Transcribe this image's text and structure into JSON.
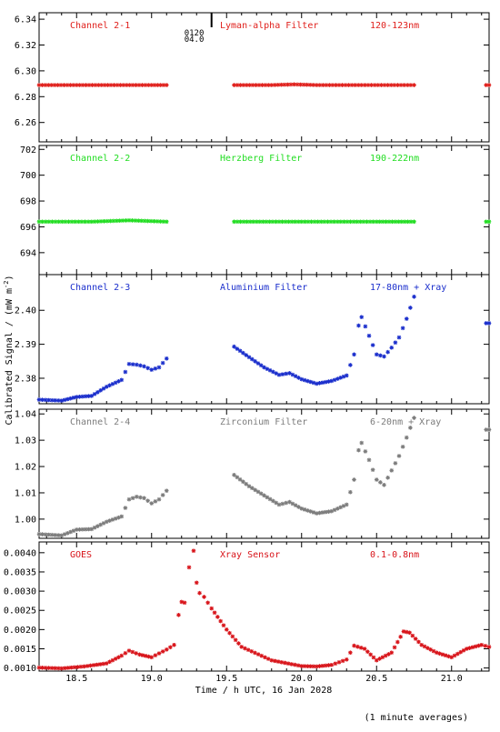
{
  "chart_data": [
    {
      "type": "scatter",
      "panel": 1,
      "labels": {
        "channel": "Channel 2-1",
        "filter": "Lyman-alpha Filter",
        "band": "120-123nm"
      },
      "color": "#e0201c",
      "ylim": [
        6.245,
        6.345
      ],
      "yticks": [
        6.26,
        6.28,
        6.3,
        6.32,
        6.34
      ],
      "yticklabels": [
        "6.26",
        "6.28",
        "6.30",
        "6.32",
        "6.34"
      ],
      "annotation": {
        "lines": [
          "0120",
          "04.0"
        ],
        "x": 19.23
      },
      "segments": [
        {
          "x": [
            18.25,
            18.5,
            18.75,
            19.0,
            19.1
          ],
          "y": [
            6.289,
            6.289,
            6.289,
            6.289,
            6.289
          ]
        },
        {
          "x": [
            19.55,
            19.8,
            19.95,
            20.1,
            20.4,
            20.75
          ],
          "y": [
            6.289,
            6.289,
            6.2895,
            6.289,
            6.289,
            6.289
          ]
        },
        {
          "x": [
            21.23,
            21.25
          ],
          "y": [
            6.289,
            6.289
          ]
        }
      ]
    },
    {
      "type": "scatter",
      "panel": 2,
      "labels": {
        "channel": "Channel 2-2",
        "filter": "Herzberg Filter",
        "band": "190-222nm"
      },
      "color": "#22dd22",
      "ylim": [
        692.3,
        702.3
      ],
      "yticks": [
        694,
        696,
        698,
        700,
        702
      ],
      "yticklabels": [
        "694",
        "696",
        "698",
        "700",
        "702"
      ],
      "segments": [
        {
          "x": [
            18.25,
            18.6,
            18.85,
            19.1
          ],
          "y": [
            696.4,
            696.4,
            696.5,
            696.4
          ]
        },
        {
          "x": [
            19.55,
            20.0,
            20.5,
            20.75
          ],
          "y": [
            696.4,
            696.4,
            696.4,
            696.4
          ]
        },
        {
          "x": [
            21.23,
            21.25
          ],
          "y": [
            696.4,
            696.4
          ]
        }
      ]
    },
    {
      "type": "scatter",
      "panel": 3,
      "labels": {
        "channel": "Channel 2-3",
        "filter": "Aluminium Filter",
        "band": "17-80nm + Xray"
      },
      "color": "#1a2ecc",
      "ylim": [
        2.3725,
        2.4105
      ],
      "yticks": [
        2.38,
        2.39,
        2.4
      ],
      "yticklabels": [
        "2.38",
        "2.39",
        "2.40"
      ],
      "segments": [
        {
          "x": [
            18.25,
            18.4,
            18.5,
            18.6,
            18.7,
            18.8,
            18.85,
            18.9,
            18.95,
            19.0,
            19.05,
            19.1
          ],
          "y": [
            2.3737,
            2.3734,
            2.3745,
            2.3748,
            2.3775,
            2.3795,
            2.3842,
            2.384,
            2.3835,
            2.3825,
            2.3832,
            2.3858
          ]
        },
        {
          "x": [
            19.55,
            19.65,
            19.75,
            19.85,
            19.92,
            20.0,
            20.1,
            20.2,
            20.3,
            20.35,
            20.38,
            20.4,
            20.45,
            20.5,
            20.55,
            20.6,
            20.65,
            20.7,
            20.75
          ],
          "y": [
            2.3893,
            2.3862,
            2.3832,
            2.381,
            2.3815,
            2.3797,
            2.3784,
            2.3792,
            2.3808,
            2.387,
            2.3955,
            2.398,
            2.3925,
            2.387,
            2.3864,
            2.389,
            2.392,
            2.3975,
            2.404
          ]
        },
        {
          "x": [
            21.23,
            21.25
          ],
          "y": [
            2.3962,
            2.3962
          ]
        }
      ]
    },
    {
      "type": "scatter",
      "panel": 4,
      "labels": {
        "channel": "Channel 2-4",
        "filter": "Zirconium Filter",
        "band": "6-20nm + Xray"
      },
      "color": "#7c7c7c",
      "ylim": [
        0.9927,
        1.0418
      ],
      "yticks": [
        1.0,
        1.01,
        1.02,
        1.03,
        1.04
      ],
      "yticklabels": [
        "1.00",
        "1.01",
        "1.02",
        "1.03",
        "1.04"
      ],
      "segments": [
        {
          "x": [
            18.25,
            18.4,
            18.5,
            18.6,
            18.7,
            18.8,
            18.85,
            18.9,
            18.95,
            19.0,
            19.05,
            19.1
          ],
          "y": [
            0.9943,
            0.9938,
            0.996,
            0.9962,
            0.999,
            1.001,
            1.0075,
            1.0085,
            1.008,
            1.006,
            1.0075,
            1.0108
          ]
        },
        {
          "x": [
            19.55,
            19.65,
            19.75,
            19.85,
            19.92,
            20.0,
            20.1,
            20.2,
            20.3,
            20.35,
            20.38,
            20.4,
            20.45,
            20.5,
            20.55,
            20.6,
            20.65,
            20.7,
            20.75
          ],
          "y": [
            1.0168,
            1.0125,
            1.009,
            1.0055,
            1.0065,
            1.004,
            1.0022,
            1.003,
            1.0055,
            1.015,
            1.0262,
            1.029,
            1.0225,
            1.015,
            1.013,
            1.0185,
            1.024,
            1.031,
            1.0385
          ]
        },
        {
          "x": [
            21.23,
            21.25
          ],
          "y": [
            1.034,
            1.034
          ]
        }
      ]
    },
    {
      "type": "scatter",
      "panel": 5,
      "labels": {
        "channel": "GOES",
        "filter": "Xray Sensor",
        "band": "0.1-0.8nm"
      },
      "color": "#d8141a",
      "ylim": [
        0.00092,
        0.00428
      ],
      "yticks": [
        0.001,
        0.0015,
        0.002,
        0.0025,
        0.003,
        0.0035,
        0.004
      ],
      "yticklabels": [
        "0.0010",
        "0.0015",
        "0.0020",
        "0.0025",
        "0.0030",
        "0.0035",
        "0.0040"
      ],
      "segments": [
        {
          "x": [
            18.25,
            18.4,
            18.55,
            18.7,
            18.8,
            18.85,
            18.92,
            19.0,
            19.05,
            19.1,
            19.15,
            19.18,
            19.2,
            19.22,
            19.25,
            19.28,
            19.3,
            19.32,
            19.35,
            19.4,
            19.5,
            19.6,
            19.8,
            20.0,
            20.1,
            20.2,
            20.25,
            20.3,
            20.35,
            20.42,
            20.5,
            20.6,
            20.68,
            20.72,
            20.8,
            20.9,
            21.0,
            21.1,
            21.2,
            21.25
          ],
          "y": [
            0.00101,
            0.00099,
            0.00104,
            0.00112,
            0.00132,
            0.00145,
            0.00135,
            0.00128,
            0.00138,
            0.00148,
            0.0016,
            0.00238,
            0.00272,
            0.0027,
            0.00362,
            0.00405,
            0.00322,
            0.00295,
            0.00285,
            0.00255,
            0.002,
            0.00155,
            0.0012,
            0.00105,
            0.00104,
            0.00108,
            0.00115,
            0.00122,
            0.00158,
            0.0015,
            0.0012,
            0.0014,
            0.00195,
            0.00192,
            0.0016,
            0.0014,
            0.00128,
            0.0015,
            0.0016,
            0.00155
          ]
        }
      ]
    }
  ],
  "axes": {
    "xlim": [
      18.25,
      21.25
    ],
    "xticks": [
      18.5,
      19.0,
      19.5,
      20.0,
      20.5,
      21.0
    ],
    "xticklabels": [
      "18.5",
      "19.0",
      "19.5",
      "20.0",
      "20.5",
      "21.0"
    ],
    "xlabel": "Time / h UTC, 16 Jan 2028",
    "ylabel_main": "Calibrated Signal / (mW m",
    "ylabel_exp": "-2",
    "ylabel_close": ")"
  },
  "footer": {
    "note": "(1 minute averages)"
  }
}
